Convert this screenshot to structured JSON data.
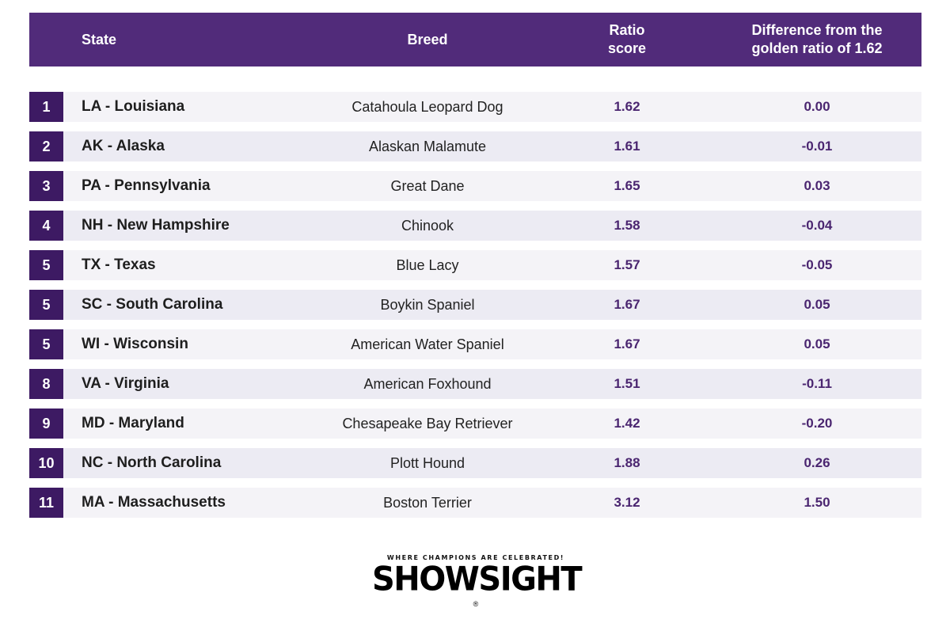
{
  "header": {
    "state": "State",
    "breed": "Breed",
    "ratio_line1": "Ratio",
    "ratio_line2": "score",
    "diff_line1": "Difference from the",
    "diff_line2": "golden ratio of 1.62"
  },
  "rows": [
    {
      "rank": "1",
      "state": "LA - Louisiana",
      "breed": "Catahoula Leopard Dog",
      "ratio": "1.62",
      "diff": "0.00"
    },
    {
      "rank": "2",
      "state": "AK - Alaska",
      "breed": "Alaskan Malamute",
      "ratio": "1.61",
      "diff": "-0.01"
    },
    {
      "rank": "3",
      "state": "PA - Pennsylvania",
      "breed": "Great Dane",
      "ratio": "1.65",
      "diff": "0.03"
    },
    {
      "rank": "4",
      "state": "NH - New Hampshire",
      "breed": "Chinook",
      "ratio": "1.58",
      "diff": "-0.04"
    },
    {
      "rank": "5",
      "state": "TX - Texas",
      "breed": "Blue Lacy",
      "ratio": "1.57",
      "diff": "-0.05"
    },
    {
      "rank": "5",
      "state": "SC - South Carolina",
      "breed": "Boykin Spaniel",
      "ratio": "1.67",
      "diff": "0.05"
    },
    {
      "rank": "5",
      "state": "WI - Wisconsin",
      "breed": "American Water Spaniel",
      "ratio": "1.67",
      "diff": "0.05"
    },
    {
      "rank": "8",
      "state": "VA - Virginia",
      "breed": "American Foxhound",
      "ratio": "1.51",
      "diff": "-0.11"
    },
    {
      "rank": "9",
      "state": "MD - Maryland",
      "breed": "Chesapeake Bay Retriever",
      "ratio": "1.42",
      "diff": "-0.20"
    },
    {
      "rank": "10",
      "state": "NC - North Carolina",
      "breed": "Plott Hound",
      "ratio": "1.88",
      "diff": "0.26"
    },
    {
      "rank": "11",
      "state": "MA - Massachusetts",
      "breed": "Boston Terrier",
      "ratio": "3.12",
      "diff": "1.50"
    }
  ],
  "logo": {
    "tagline": "WHERE CHAMPIONS ARE CELEBRATED!",
    "wordmark": "SHOWSIGHT",
    "registered": "®"
  },
  "colors": {
    "header_bg": "#512b7a",
    "rank_bg": "#3d1a63",
    "value_text": "#4a2570"
  }
}
